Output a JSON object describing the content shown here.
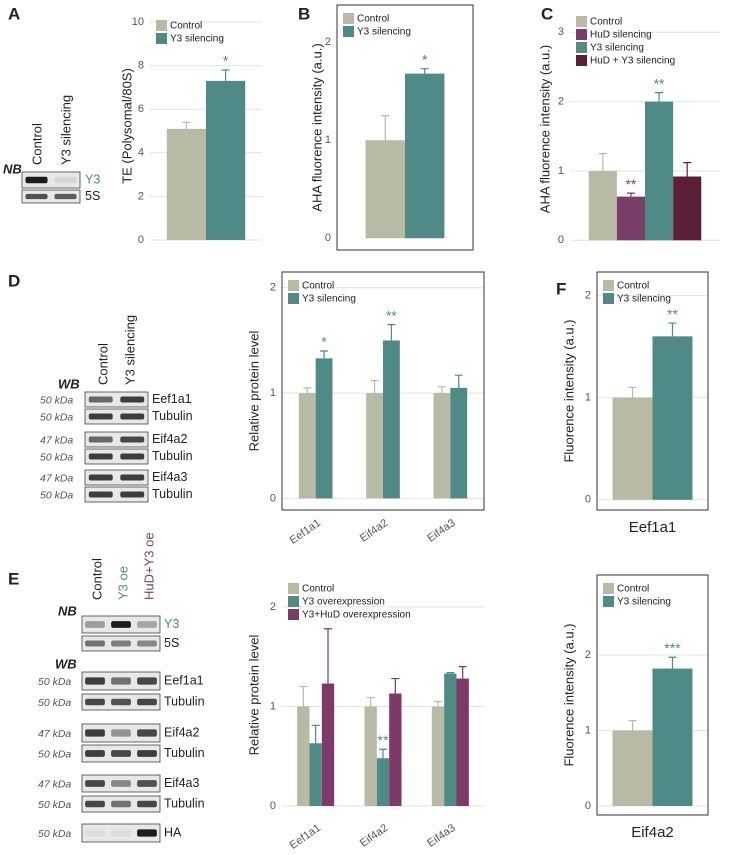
{
  "panel_labels": [
    "A",
    "B",
    "C",
    "D",
    "E",
    "F"
  ],
  "blots": [
    {
      "method": "NB",
      "lanes": [
        "Control",
        "Y3 silencing"
      ],
      "rows": [
        {
          "label": "Y3"
        },
        {
          "label": "5S"
        }
      ]
    },
    {
      "method": "WB",
      "lanes": [
        "Control",
        "Y3 silencing"
      ],
      "rows": [
        {
          "size": "50 kDa",
          "label": "Eef1a1"
        },
        {
          "size": "50 kDa",
          "label": "Tubulin"
        },
        {
          "size": "47 kDa",
          "label": "Eif4a2"
        },
        {
          "size": "50 kDa",
          "label": "Tubulin"
        },
        {
          "size": "47 kDa",
          "label": "Eif4a3"
        },
        {
          "size": "50 kDa",
          "label": "Tubulin"
        }
      ]
    },
    {
      "method": "NB",
      "lanes": [
        "Control",
        "Y3 oe",
        "HuD+Y3 oe"
      ],
      "rows": [
        {
          "label": "Y3"
        },
        {
          "label": "5S"
        }
      ]
    },
    {
      "method": "WB",
      "rows": [
        {
          "size": "50 kDa",
          "label": "Eef1a1"
        },
        {
          "size": "50 kDa",
          "label": "Tubulin"
        },
        {
          "size": "47 kDa",
          "label": "Eif4a2"
        },
        {
          "size": "50 kDa",
          "label": "Tubulin"
        },
        {
          "size": "47 kDa",
          "label": "Eif4a3"
        },
        {
          "size": "50 kDa",
          "label": "Tubulin"
        },
        {
          "size": "50 kDa",
          "label": "HA"
        }
      ]
    }
  ],
  "chart_data": [
    {
      "type": "bar",
      "ylabel": "TE (Polysomal/80S)",
      "categories": [
        null
      ],
      "ylim": [
        0,
        10.46
      ],
      "yticks": [
        0,
        2,
        4,
        6,
        8,
        10
      ],
      "grid": true,
      "frame": false,
      "legend": "top-left",
      "series": [
        {
          "name": "Control",
          "color": "#b8baa6",
          "values": [
            5.1
          ],
          "errors": [
            0.3
          ],
          "significance": [
            null
          ]
        },
        {
          "name": "Y3 silencing",
          "color": "#4f8a86",
          "values": [
            7.3
          ],
          "errors": [
            0.5
          ],
          "significance": [
            "*"
          ]
        }
      ]
    },
    {
      "type": "bar",
      "ylabel": "AHA fluorence intensity (a.u.)",
      "categories": [
        null
      ],
      "ylim": [
        -0.12,
        2.38
      ],
      "yticks": [
        0,
        1,
        2
      ],
      "grid": false,
      "frame": true,
      "legend": "top-left",
      "series": [
        {
          "name": "Control",
          "color": "#b8baa6",
          "values": [
            1.0
          ],
          "errors": [
            0.25
          ],
          "significance": [
            null
          ]
        },
        {
          "name": "Y3 silencing",
          "color": "#4f8a86",
          "values": [
            1.68
          ],
          "errors": [
            0.05
          ],
          "significance": [
            "*"
          ]
        }
      ]
    },
    {
      "type": "bar",
      "ylabel": "AHA fluorence intensity (a.u.)",
      "categories": [
        null
      ],
      "ylim": [
        -0.14,
        3.35
      ],
      "yticks": [
        0,
        1,
        2,
        3
      ],
      "grid": true,
      "frame": false,
      "legend": "top-left",
      "series": [
        {
          "name": "Control",
          "color": "#b8baa6",
          "values": [
            1.0
          ],
          "errors": [
            0.25
          ],
          "significance": [
            null
          ]
        },
        {
          "name": "HuD silencing",
          "color": "#7a3e6a",
          "values": [
            0.63
          ],
          "errors": [
            0.05
          ],
          "significance": [
            "**"
          ]
        },
        {
          "name": "Y3 silencing",
          "color": "#4f8a86",
          "values": [
            2.0
          ],
          "errors": [
            0.13
          ],
          "significance": [
            "**"
          ]
        },
        {
          "name": "HuD + Y3 silencing",
          "color": "#5b2038",
          "values": [
            0.92
          ],
          "errors": [
            0.2
          ],
          "significance": [
            null
          ]
        }
      ]
    },
    {
      "type": "bar",
      "ylabel": "Relative protein level",
      "categories": [
        "Eef1a1",
        "Eif4a2",
        "Eif4a3"
      ],
      "ylim": [
        -0.11,
        2.15
      ],
      "yticks": [
        0,
        1,
        2
      ],
      "grid": true,
      "frame": true,
      "legend": "top-left",
      "series": [
        {
          "name": "Control",
          "color": "#b8baa6",
          "values": [
            1.0,
            1.0,
            1.0
          ],
          "errors": [
            0.05,
            0.12,
            0.06
          ],
          "significance": [
            null,
            null,
            null
          ]
        },
        {
          "name": "Y3 silencing",
          "color": "#4f8a86",
          "values": [
            1.33,
            1.5,
            1.05
          ],
          "errors": [
            0.07,
            0.15,
            0.12
          ],
          "significance": [
            "*",
            "**",
            null
          ]
        }
      ]
    },
    {
      "type": "bar",
      "ylabel": "Relative protein level",
      "categories": [
        "Eef1a1",
        "Eif4a2",
        "Eif4a3"
      ],
      "ylim": [
        -0.09,
        2.32
      ],
      "yticks": [
        0,
        1,
        2
      ],
      "grid": true,
      "frame": false,
      "legend": "top-left",
      "series": [
        {
          "name": "Control",
          "color": "#b8baa6",
          "values": [
            1.0,
            1.0,
            1.0
          ],
          "errors": [
            0.2,
            0.09,
            0.05
          ],
          "significance": [
            null,
            null,
            null
          ]
        },
        {
          "name": "Y3 overexpression",
          "color": "#4f8a86",
          "values": [
            0.63,
            0.48,
            1.33
          ],
          "errors": [
            0.18,
            0.09,
            0.01
          ],
          "significance": [
            null,
            "**",
            null
          ]
        },
        {
          "name": "Y3+HuD overexpression",
          "color": "#7d3a68",
          "values": [
            1.23,
            1.13,
            1.28
          ],
          "errors": [
            0.55,
            0.15,
            0.12
          ],
          "significance": [
            null,
            null,
            null
          ]
        }
      ]
    },
    {
      "type": "bar",
      "ylabel": "Fluorence intensity (a.u.)",
      "categories": [
        "Eef1a1"
      ],
      "ylim": [
        -0.1,
        2.23
      ],
      "yticks": [
        0,
        1,
        2
      ],
      "grid": true,
      "frame": true,
      "legend": "top-left",
      "series": [
        {
          "name": "Control",
          "color": "#b8baa6",
          "values": [
            1.0
          ],
          "errors": [
            0.1
          ],
          "significance": [
            null
          ]
        },
        {
          "name": "Y3 silencing",
          "color": "#4f8a86",
          "values": [
            1.6
          ],
          "errors": [
            0.13
          ],
          "significance": [
            "**"
          ]
        }
      ]
    },
    {
      "type": "bar",
      "ylabel": "Fluorence intensity (a.u.)",
      "categories": [
        "Eif4a2"
      ],
      "ylim": [
        -0.12,
        3.06
      ],
      "yticks": [
        0,
        1,
        2
      ],
      "grid": true,
      "frame": true,
      "legend": "top-left",
      "series": [
        {
          "name": "Control",
          "color": "#b8baa6",
          "values": [
            1.0
          ],
          "errors": [
            0.13
          ],
          "significance": [
            null
          ]
        },
        {
          "name": "Y3 silencing",
          "color": "#4f8a86",
          "values": [
            1.82
          ],
          "errors": [
            0.15
          ],
          "significance": [
            "***"
          ]
        }
      ]
    }
  ]
}
